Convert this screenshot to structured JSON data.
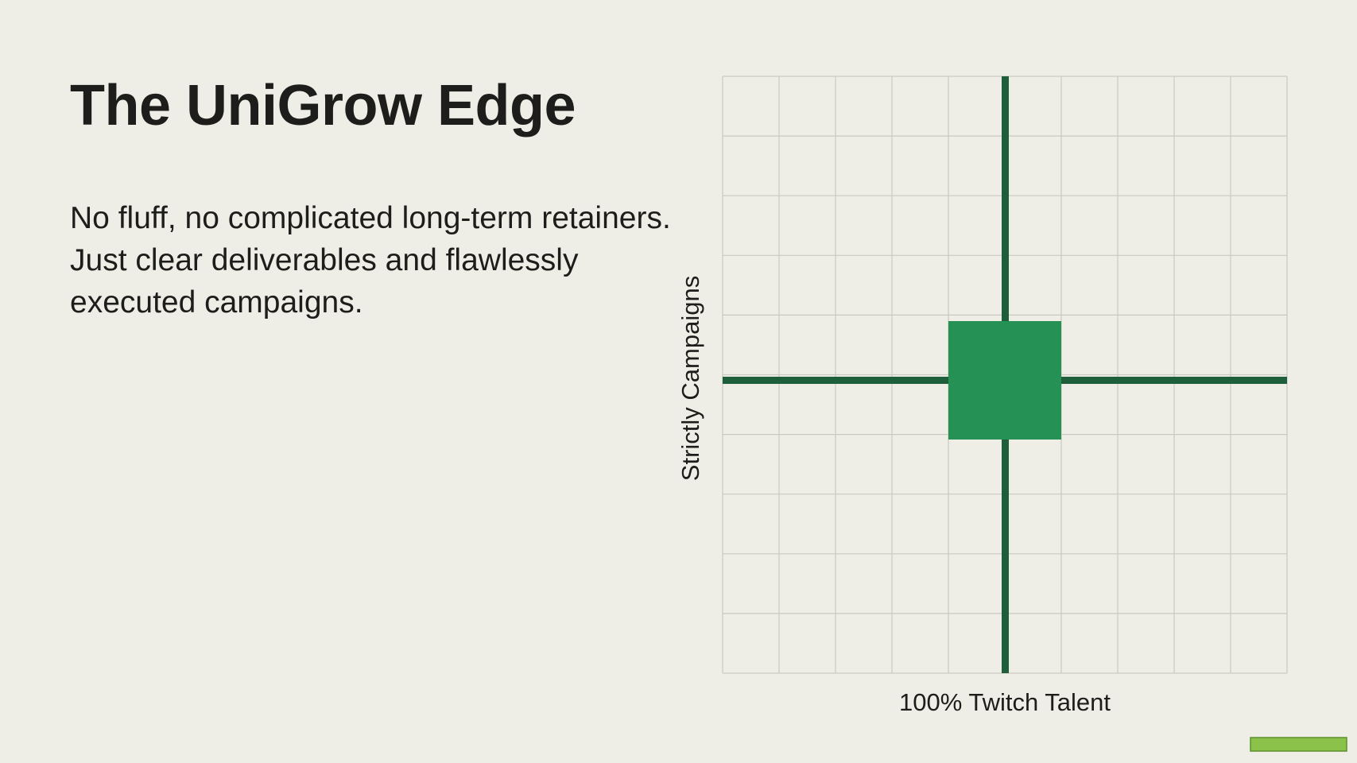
{
  "title": "The UniGrow Edge",
  "body": "No fluff, no complicated long-term retainers. Just clear deliverables and flawlessly executed campaigns.",
  "diagram": {
    "x_label": "100% Twitch Talent",
    "y_label": "Strictly Campaigns"
  }
}
